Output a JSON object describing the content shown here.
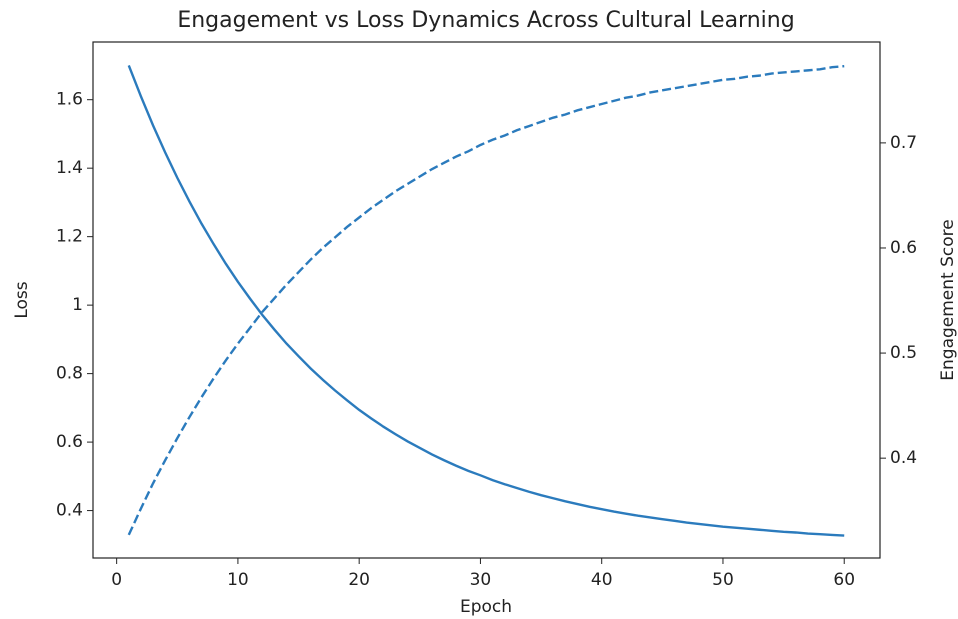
{
  "chart_data": {
    "type": "line",
    "title": "Engagement vs Loss Dynamics Across Cultural Learning",
    "xlabel": "Epoch",
    "ylabel": "Loss",
    "y2label": "Engagement Score",
    "x": [
      1,
      2,
      3,
      4,
      5,
      6,
      7,
      8,
      9,
      10,
      11,
      12,
      13,
      14,
      15,
      16,
      17,
      18,
      19,
      20,
      21,
      22,
      23,
      24,
      25,
      26,
      27,
      28,
      29,
      30,
      31,
      32,
      33,
      34,
      35,
      36,
      37,
      38,
      39,
      40,
      41,
      42,
      43,
      44,
      45,
      46,
      47,
      48,
      49,
      50,
      51,
      52,
      53,
      54,
      55,
      56,
      57,
      58,
      59,
      60
    ],
    "series": [
      {
        "color": "#2b7bbd",
        "linestyle": "solid",
        "axis": "y",
        "values": [
          1.7,
          1.61,
          1.525,
          1.446,
          1.372,
          1.303,
          1.238,
          1.178,
          1.121,
          1.068,
          1.019,
          0.972,
          0.929,
          0.888,
          0.851,
          0.815,
          0.782,
          0.751,
          0.722,
          0.694,
          0.669,
          0.645,
          0.623,
          0.602,
          0.583,
          0.564,
          0.547,
          0.531,
          0.516,
          0.503,
          0.489,
          0.477,
          0.466,
          0.455,
          0.445,
          0.436,
          0.427,
          0.419,
          0.411,
          0.404,
          0.397,
          0.391,
          0.385,
          0.38,
          0.375,
          0.37,
          0.365,
          0.361,
          0.357,
          0.353,
          0.35,
          0.347,
          0.344,
          0.341,
          0.338,
          0.336,
          0.333,
          0.331,
          0.329,
          0.327
        ]
      },
      {
        "color": "#2b7bbd",
        "linestyle": "dashed",
        "axis": "y2",
        "values": [
          0.327,
          0.352,
          0.376,
          0.398,
          0.419,
          0.439,
          0.458,
          0.476,
          0.493,
          0.509,
          0.524,
          0.539,
          0.552,
          0.565,
          0.577,
          0.589,
          0.6,
          0.61,
          0.62,
          0.629,
          0.638,
          0.646,
          0.654,
          0.661,
          0.668,
          0.675,
          0.681,
          0.687,
          0.692,
          0.698,
          0.703,
          0.707,
          0.712,
          0.716,
          0.72,
          0.724,
          0.727,
          0.731,
          0.734,
          0.737,
          0.74,
          0.743,
          0.745,
          0.748,
          0.75,
          0.752,
          0.754,
          0.756,
          0.758,
          0.76,
          0.761,
          0.763,
          0.764,
          0.766,
          0.767,
          0.768,
          0.769,
          0.77,
          0.772,
          0.773
        ]
      }
    ],
    "xlim": [
      -1.95,
      62.95
    ],
    "xticks": [
      0,
      10,
      20,
      30,
      40,
      50,
      60
    ],
    "ylim": [
      0.2615,
      1.7685
    ],
    "yticks": [
      0.4,
      0.6,
      0.8,
      1.0,
      1.2,
      1.4,
      1.6
    ],
    "y2lim": [
      0.305,
      0.796
    ],
    "y2ticks": [
      0.4,
      0.5,
      0.6,
      0.7
    ],
    "grid": false
  }
}
